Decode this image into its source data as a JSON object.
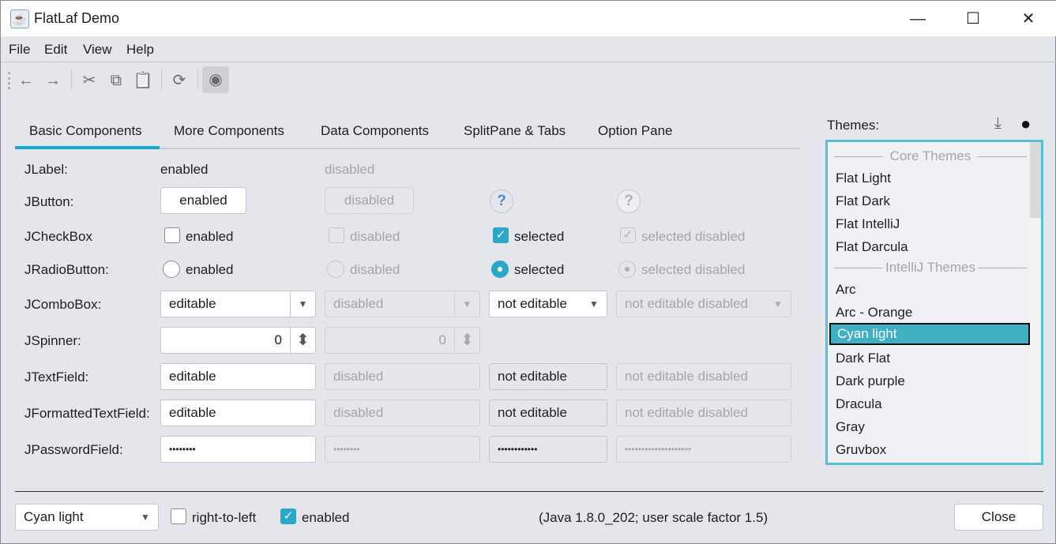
{
  "window": {
    "title": "FlatLaf Demo",
    "minimize": "—",
    "maximize": "☐",
    "close": "✕"
  },
  "menu": [
    "File",
    "Edit",
    "View",
    "Help"
  ],
  "toolbar": {
    "back": "←",
    "forward": "→",
    "cut": "✂",
    "copy": "⧉",
    "paste": "📋",
    "refresh": "⟳",
    "view": "◉"
  },
  "tabs": [
    "Basic Components",
    "More Components",
    "Data Components",
    "SplitPane & Tabs",
    "Option Pane"
  ],
  "rows": {
    "label": {
      "name": "JLabel:",
      "enabled": "enabled",
      "disabled": "disabled"
    },
    "button": {
      "name": "JButton:",
      "enabled": "enabled",
      "disabled": "disabled",
      "help": "?"
    },
    "checkbox": {
      "name": "JCheckBox",
      "enabled": "enabled",
      "disabled": "disabled",
      "selected": "selected",
      "selected_disabled": "selected disabled",
      "check": "✓"
    },
    "radio": {
      "name": "JRadioButton:",
      "enabled": "enabled",
      "disabled": "disabled",
      "selected": "selected",
      "selected_disabled": "selected disabled"
    },
    "combo": {
      "name": "JComboBox:",
      "editable": "editable",
      "disabled": "disabled",
      "not_editable": "not editable",
      "not_editable_disabled": "not editable disabled",
      "arrow": "▼"
    },
    "spinner": {
      "name": "JSpinner:",
      "value": "0",
      "disabled_value": "0",
      "arrows": "⬍"
    },
    "textfield": {
      "name": "JTextField:",
      "editable": "editable",
      "disabled": "disabled",
      "not_editable": "not editable",
      "not_editable_disabled": "not editable disabled"
    },
    "formatted": {
      "name": "JFormattedTextField:",
      "editable": "editable",
      "disabled": "disabled",
      "not_editable": "not editable",
      "not_editable_disabled": "not editable disabled"
    },
    "password": {
      "name": "JPasswordField:",
      "editable": "••••••••",
      "disabled": "••••••••",
      "not_editable": "••••••••••••",
      "not_editable_disabled": "••••••••••••••••••••"
    }
  },
  "themes": {
    "label": "Themes:",
    "download": "⤓",
    "github": "●",
    "core_header": "Core Themes",
    "core": [
      "Flat Light",
      "Flat Dark",
      "Flat IntelliJ",
      "Flat Darcula"
    ],
    "intellij_header": "IntelliJ Themes",
    "intellij": [
      "Arc",
      "Arc - Orange",
      "Cyan light",
      "Dark Flat",
      "Dark purple",
      "Dracula",
      "Gray",
      "Gruvbox"
    ],
    "selected": "Cyan light"
  },
  "bottom": {
    "theme_combo": "Cyan light",
    "rtl": "right-to-left",
    "enabled": "enabled",
    "info": "(Java 1.8.0_202;  user scale factor 1.5)",
    "close": "Close"
  },
  "colors": {
    "accent": "#14a8d2",
    "selection": "#3eb0c2"
  }
}
